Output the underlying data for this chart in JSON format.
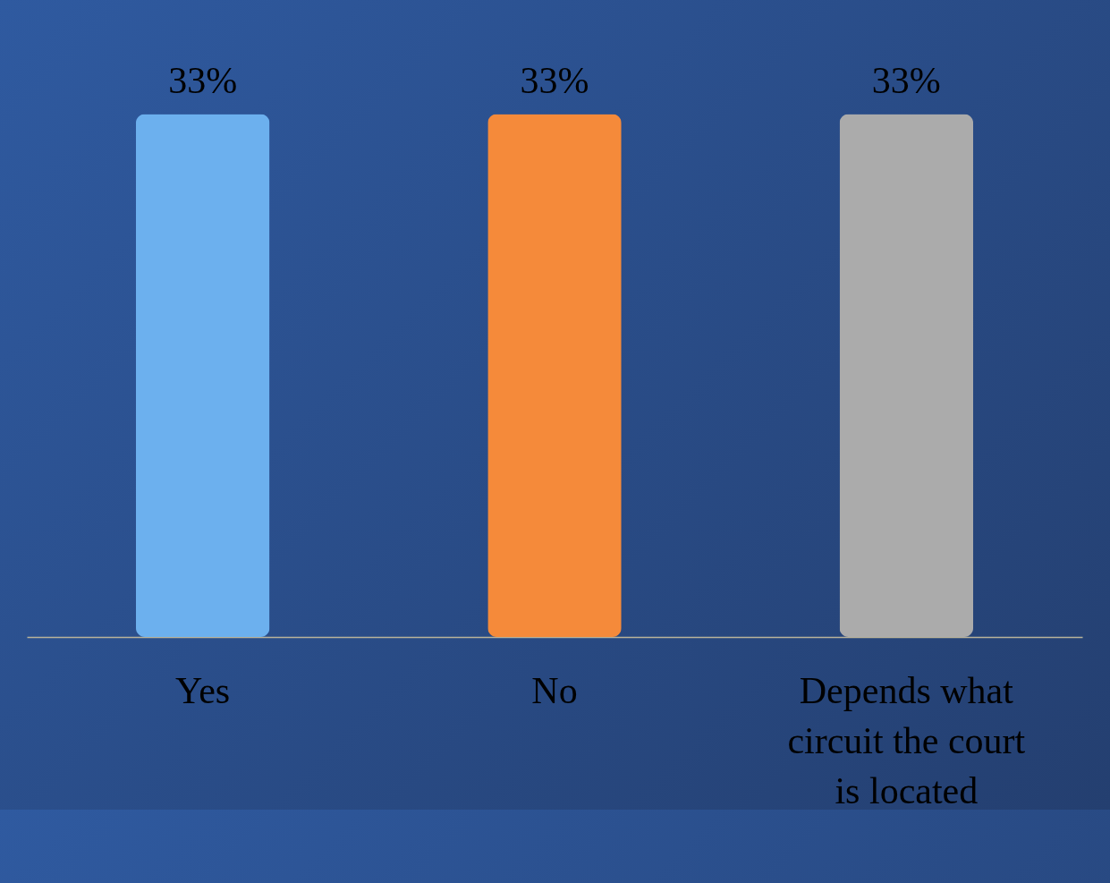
{
  "chart_data": {
    "type": "bar",
    "categories": [
      "Yes",
      "No",
      "Depends what circuit the court is located"
    ],
    "values": [
      33,
      33,
      33
    ],
    "colors": [
      "#6cb0ee",
      "#f58a3a",
      "#ababab"
    ],
    "value_labels": [
      "33%",
      "33%",
      "33%"
    ]
  }
}
